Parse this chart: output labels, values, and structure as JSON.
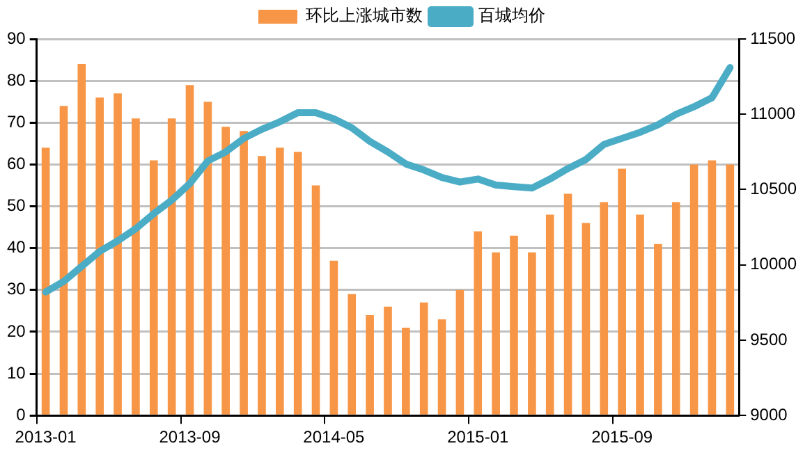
{
  "chart_data": {
    "type": "bar",
    "categories": [
      "2013-01",
      null,
      null,
      null,
      null,
      null,
      null,
      null,
      "2013-09",
      null,
      null,
      null,
      null,
      null,
      null,
      null,
      "2014-05",
      null,
      null,
      null,
      null,
      null,
      null,
      null,
      "2015-01",
      null,
      null,
      null,
      null,
      null,
      null,
      null,
      "2015-09",
      null,
      null,
      null,
      null,
      null,
      null
    ],
    "series": [
      {
        "name": "环比上涨城市数",
        "color": "#f79646",
        "values": [
          64,
          74,
          84,
          76,
          77,
          71,
          61,
          71,
          79,
          75,
          69,
          68,
          62,
          64,
          63,
          55,
          37,
          29,
          24,
          26,
          21,
          27,
          23,
          30,
          44,
          39,
          43,
          39,
          48,
          53,
          46,
          51,
          59,
          48,
          41,
          51,
          60,
          61,
          60
        ]
      },
      {
        "name": "百城均价",
        "type": "line",
        "axis": "y2",
        "color": "#4bacc6",
        "values": [
          9820,
          9890,
          9990,
          10090,
          10160,
          10240,
          10340,
          10430,
          10540,
          10690,
          10750,
          10840,
          10900,
          10950,
          11010,
          11010,
          10970,
          10910,
          10820,
          10750,
          10670,
          10630,
          10580,
          10550,
          10570,
          10530,
          10520,
          10510,
          10570,
          10640,
          10700,
          10800,
          10840,
          10880,
          10930,
          11000,
          11050,
          11110,
          11310
        ]
      }
    ],
    "ylim": [
      0,
      90
    ],
    "yticks": [
      0,
      10,
      20,
      30,
      40,
      50,
      60,
      70,
      80,
      90
    ],
    "y2lim": [
      9000,
      11500
    ],
    "y2ticks": [
      9000,
      9500,
      10000,
      10500,
      11000,
      11500
    ],
    "grid": "y",
    "legend": "top",
    "marker": "none",
    "line_style": "solid"
  }
}
